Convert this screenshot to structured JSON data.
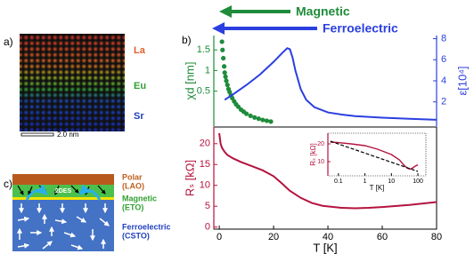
{
  "header": {
    "arrows": [
      "Magnetic",
      "Ferroelectric"
    ]
  },
  "panel_a": {
    "label": "a)",
    "layers": [
      "La",
      "Eu",
      "Sr"
    ],
    "scale_bar": "2.0 nm"
  },
  "panel_b": {
    "label": "b)"
  },
  "panel_c": {
    "label": "c)",
    "interface": "2DES",
    "layers": [
      {
        "name": "Polar",
        "material": "(LAO)"
      },
      {
        "name": "Magnetic",
        "material": "(ETO)"
      },
      {
        "name": "Ferroelectric",
        "material": "(CSTO)"
      }
    ]
  },
  "chart_data": [
    {
      "type": "combo",
      "ylabel": "χd [nm]",
      "y2label": "ε[10⁴]",
      "xlim": [
        -2,
        80
      ],
      "ylim": [
        -0.35,
        1.85
      ],
      "yticks": [
        0.5,
        1,
        1.5
      ],
      "y2lim": [
        -0.3,
        8.3
      ],
      "y2ticks": [
        2,
        4,
        6,
        8
      ],
      "series": [
        {
          "type": "scatter",
          "color": "#1e8c3a",
          "x": [
            1,
            1.2,
            1.5,
            1.8,
            2,
            2.3,
            2.6,
            3,
            3.4,
            3.8,
            4.3,
            4.8,
            5.5,
            6.2,
            7,
            8,
            9,
            10,
            11.5,
            13,
            14.5,
            16,
            17.5,
            19
          ],
          "values": [
            1.7,
            1.5,
            1.3,
            1.1,
            0.95,
            0.85,
            0.75,
            0.65,
            0.55,
            0.48,
            0.4,
            0.33,
            0.25,
            0.18,
            0.12,
            0.05,
            0,
            -0.05,
            -0.1,
            -0.14,
            -0.17,
            -0.2,
            -0.22,
            -0.24
          ]
        },
        {
          "type": "line",
          "color": "#2b3fe0",
          "axis": "y2",
          "x": [
            2,
            5,
            10,
            15,
            20,
            23,
            25,
            26,
            27,
            28,
            30,
            32,
            35,
            40,
            45,
            50,
            60,
            70,
            80
          ],
          "values": [
            2.2,
            2.7,
            3.6,
            4.6,
            5.8,
            6.6,
            7.1,
            7.0,
            6.2,
            5.0,
            3.2,
            2.2,
            1.5,
            1.0,
            0.8,
            0.65,
            0.5,
            0.4,
            0.3
          ]
        }
      ]
    },
    {
      "type": "combo",
      "ylabel": "Rₛ [kΩ]",
      "xlabel": "T [K]",
      "xlim": [
        -2,
        80
      ],
      "xticks": [
        0,
        20,
        40,
        60,
        80
      ],
      "ylim": [
        -0.5,
        24
      ],
      "yticks": [
        0,
        5,
        10,
        15,
        20
      ],
      "series": [
        {
          "type": "line",
          "color": "#b5123e",
          "x": [
            0,
            0.5,
            1,
            2,
            3,
            5,
            8,
            12,
            16,
            20,
            23,
            26,
            30,
            34,
            38,
            45,
            50,
            55,
            60,
            70,
            80
          ],
          "values": [
            22.5,
            20,
            19,
            18,
            17.3,
            16.5,
            15.6,
            14.6,
            13.6,
            12.2,
            10.5,
            8.7,
            7,
            5.8,
            5.1,
            4.6,
            4.5,
            4.6,
            4.8,
            5.3,
            6
          ]
        }
      ]
    },
    {
      "type": "combo",
      "ylabel": "Rₛ [kΩ]",
      "xlabel": "T [K]",
      "xlog": true,
      "xlim": [
        0.04,
        200
      ],
      "xticks": [
        0.1,
        1,
        10,
        100
      ],
      "ylim": [
        2,
        26
      ],
      "yticks": [
        10,
        20
      ],
      "series": [
        {
          "type": "line",
          "color": "#b5123e",
          "x": [
            0.05,
            0.1,
            0.3,
            1,
            3,
            10,
            20,
            30,
            40,
            50,
            60,
            80,
            100
          ],
          "values": [
            21,
            20.7,
            20,
            19,
            17,
            14,
            11,
            8,
            6.3,
            5.8,
            6.2,
            7.5,
            8.2
          ]
        },
        {
          "type": "line",
          "color": "#000000",
          "dashed": true,
          "x": [
            0.05,
            100
          ],
          "values": [
            21.5,
            4.5
          ]
        }
      ]
    }
  ]
}
